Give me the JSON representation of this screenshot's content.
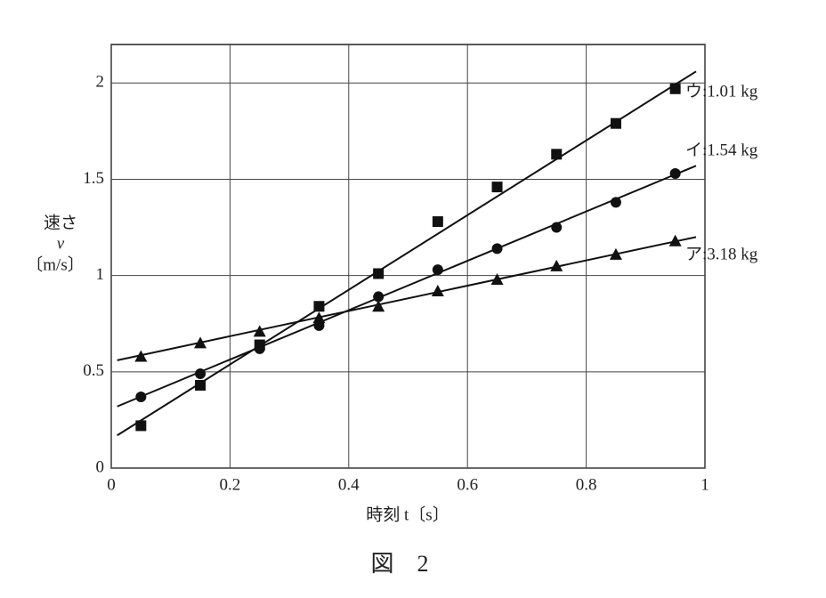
{
  "chart_data": {
    "type": "scatter",
    "ylabel": [
      "速さ",
      "v",
      "〔m/s〕"
    ],
    "xlabel": "時刻 t〔s〕",
    "caption": "図　2",
    "x": [
      0.05,
      0.15,
      0.25,
      0.35,
      0.45,
      0.55,
      0.65,
      0.75,
      0.85,
      0.95
    ],
    "series": [
      {
        "name": "ア:3.18 kg",
        "color": "#111",
        "marker": "triangle",
        "values": [
          0.58,
          0.65,
          0.71,
          0.78,
          0.84,
          0.92,
          0.98,
          1.05,
          1.11,
          1.18
        ],
        "fit": {
          "x": [
            0.01,
            0.985
          ],
          "values": [
            0.56,
            1.2
          ]
        }
      },
      {
        "name": "イ:1.54 kg",
        "color": "#111",
        "marker": "circle",
        "values": [
          0.37,
          0.49,
          0.62,
          0.74,
          0.89,
          1.03,
          1.14,
          1.25,
          1.38,
          1.53
        ],
        "fit": {
          "x": [
            0.01,
            0.985
          ],
          "values": [
            0.32,
            1.57
          ]
        }
      },
      {
        "name": "ウ:1.01 kg",
        "color": "#111",
        "marker": "square",
        "values": [
          0.22,
          0.43,
          0.64,
          0.84,
          1.01,
          1.28,
          1.46,
          1.63,
          1.79,
          1.97
        ],
        "fit": {
          "x": [
            0.01,
            0.985
          ],
          "values": [
            0.17,
            2.06
          ]
        }
      }
    ],
    "xlim": [
      0,
      1
    ],
    "xticks": [
      0,
      0.2,
      0.4,
      0.6,
      0.8,
      1
    ],
    "ylim": [
      0,
      2.2
    ],
    "yticks": [
      0,
      0.5,
      1,
      1.5,
      2
    ],
    "grid": true
  }
}
